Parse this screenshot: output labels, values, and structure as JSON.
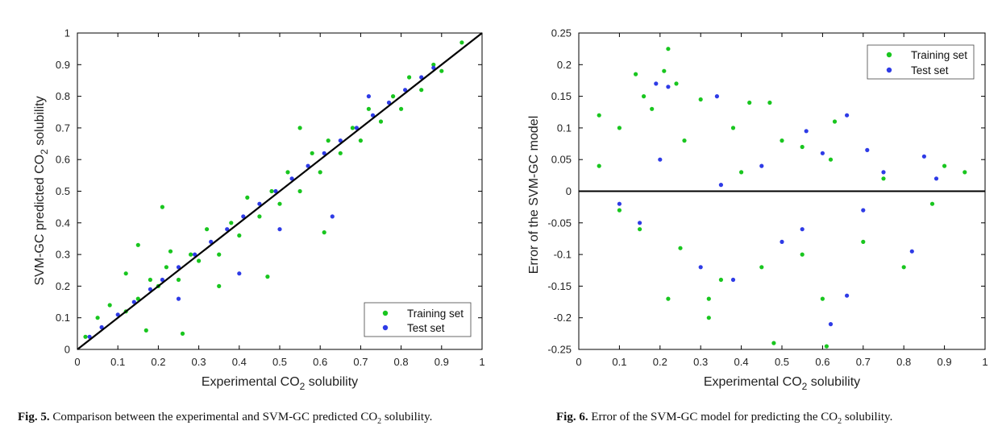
{
  "colors": {
    "training": "#19c61f",
    "test": "#2e3be6",
    "line": "#000000"
  },
  "figure5": {
    "caption_label": "Fig. 5.",
    "caption_text_1": "Comparison between the experimental and SVM-GC predicted CO",
    "caption_sub": "2",
    "caption_text_2": "solubility."
  },
  "figure6": {
    "caption_label": "Fig. 6.",
    "caption_text_1": "Error of the SVM-GC model for predicting the CO",
    "caption_sub": "2",
    "caption_text_2": " solubility."
  },
  "chart_data": [
    {
      "type": "scatter",
      "xlabel": "Experimental CO2 solubility",
      "xlabel_main": "Experimental CO",
      "xlabel_sub": "2",
      "xlabel_rest": " solubility",
      "ylabel": "SVM-GC predicted CO2 solubility",
      "ylabel_main": "SVM-GC predicted CO",
      "ylabel_sub": "2",
      "ylabel_rest": " solubility",
      "xlim": [
        0,
        1
      ],
      "ylim": [
        0,
        1
      ],
      "xticks": [
        "0",
        "0.1",
        "0.2",
        "0.3",
        "0.4",
        "0.5",
        "0.6",
        "0.7",
        "0.8",
        "0.9",
        "1"
      ],
      "yticks": [
        "0",
        "0.1",
        "0.2",
        "0.3",
        "0.4",
        "0.5",
        "0.6",
        "0.7",
        "0.8",
        "0.9",
        "1"
      ],
      "grid": false,
      "legend_position": "bottom-right",
      "reference_line": {
        "type": "y=x"
      },
      "series": [
        {
          "name": "Training set",
          "points": [
            [
              0.02,
              0.04
            ],
            [
              0.05,
              0.1
            ],
            [
              0.08,
              0.14
            ],
            [
              0.12,
              0.12
            ],
            [
              0.15,
              0.16
            ],
            [
              0.18,
              0.22
            ],
            [
              0.2,
              0.2
            ],
            [
              0.22,
              0.26
            ],
            [
              0.25,
              0.22
            ],
            [
              0.28,
              0.3
            ],
            [
              0.3,
              0.28
            ],
            [
              0.32,
              0.38
            ],
            [
              0.35,
              0.3
            ],
            [
              0.38,
              0.4
            ],
            [
              0.4,
              0.36
            ],
            [
              0.42,
              0.48
            ],
            [
              0.45,
              0.42
            ],
            [
              0.48,
              0.5
            ],
            [
              0.5,
              0.46
            ],
            [
              0.52,
              0.56
            ],
            [
              0.55,
              0.5
            ],
            [
              0.58,
              0.62
            ],
            [
              0.6,
              0.56
            ],
            [
              0.62,
              0.66
            ],
            [
              0.65,
              0.62
            ],
            [
              0.68,
              0.7
            ],
            [
              0.7,
              0.66
            ],
            [
              0.72,
              0.76
            ],
            [
              0.75,
              0.72
            ],
            [
              0.78,
              0.8
            ],
            [
              0.8,
              0.76
            ],
            [
              0.82,
              0.86
            ],
            [
              0.85,
              0.82
            ],
            [
              0.88,
              0.9
            ],
            [
              0.9,
              0.88
            ],
            [
              0.95,
              0.97
            ],
            [
              0.21,
              0.45
            ],
            [
              0.15,
              0.33
            ],
            [
              0.47,
              0.23
            ],
            [
              0.26,
              0.05
            ],
            [
              0.61,
              0.37
            ],
            [
              0.23,
              0.31
            ],
            [
              0.17,
              0.06
            ],
            [
              0.35,
              0.2
            ],
            [
              0.55,
              0.7
            ],
            [
              0.12,
              0.24
            ]
          ]
        },
        {
          "name": "Test set",
          "points": [
            [
              0.03,
              0.04
            ],
            [
              0.06,
              0.07
            ],
            [
              0.1,
              0.11
            ],
            [
              0.14,
              0.15
            ],
            [
              0.18,
              0.19
            ],
            [
              0.21,
              0.22
            ],
            [
              0.25,
              0.26
            ],
            [
              0.29,
              0.3
            ],
            [
              0.33,
              0.34
            ],
            [
              0.37,
              0.38
            ],
            [
              0.41,
              0.42
            ],
            [
              0.45,
              0.46
            ],
            [
              0.49,
              0.5
            ],
            [
              0.53,
              0.54
            ],
            [
              0.57,
              0.58
            ],
            [
              0.61,
              0.62
            ],
            [
              0.65,
              0.66
            ],
            [
              0.69,
              0.7
            ],
            [
              0.73,
              0.74
            ],
            [
              0.77,
              0.78
            ],
            [
              0.81,
              0.82
            ],
            [
              0.85,
              0.86
            ],
            [
              0.88,
              0.89
            ],
            [
              0.4,
              0.24
            ],
            [
              0.63,
              0.42
            ],
            [
              0.25,
              0.16
            ],
            [
              0.5,
              0.38
            ],
            [
              0.72,
              0.8
            ]
          ]
        }
      ]
    },
    {
      "type": "scatter",
      "xlabel": "Experimental CO2 solubility",
      "xlabel_main": "Experimental CO",
      "xlabel_sub": "2",
      "xlabel_rest": " solubility",
      "ylabel": "Error of the SVM-GC model",
      "xlim": [
        0,
        1
      ],
      "ylim": [
        -0.25,
        0.25
      ],
      "xticks": [
        "0",
        "0.1",
        "0.2",
        "0.3",
        "0.4",
        "0.5",
        "0.6",
        "0.7",
        "0.8",
        "0.9",
        "1"
      ],
      "yticks": [
        "-0.25",
        "-0.2",
        "-0.15",
        "-0.1",
        "-0.05",
        "0",
        "0.05",
        "0.1",
        "0.15",
        "0.2",
        "0.25"
      ],
      "grid": false,
      "legend_position": "top-right",
      "reference_line": {
        "type": "y=0"
      },
      "series": [
        {
          "name": "Training set",
          "points": [
            [
              0.22,
              0.225
            ],
            [
              0.14,
              0.185
            ],
            [
              0.21,
              0.19
            ],
            [
              0.16,
              0.15
            ],
            [
              0.18,
              0.13
            ],
            [
              0.1,
              0.1
            ],
            [
              0.3,
              0.145
            ],
            [
              0.42,
              0.14
            ],
            [
              0.47,
              0.14
            ],
            [
              0.63,
              0.11
            ],
            [
              0.26,
              0.08
            ],
            [
              0.38,
              0.1
            ],
            [
              0.5,
              0.08
            ],
            [
              0.55,
              0.07
            ],
            [
              0.9,
              0.04
            ],
            [
              0.95,
              0.03
            ],
            [
              0.32,
              -0.17
            ],
            [
              0.32,
              -0.2
            ],
            [
              0.22,
              -0.17
            ],
            [
              0.48,
              -0.24
            ],
            [
              0.61,
              -0.245
            ],
            [
              0.6,
              -0.17
            ],
            [
              0.35,
              -0.14
            ],
            [
              0.45,
              -0.12
            ],
            [
              0.7,
              -0.08
            ],
            [
              0.8,
              -0.12
            ],
            [
              0.15,
              -0.06
            ],
            [
              0.05,
              0.04
            ],
            [
              0.25,
              -0.09
            ],
            [
              0.55,
              -0.1
            ],
            [
              0.87,
              -0.02
            ],
            [
              0.4,
              0.03
            ],
            [
              0.62,
              0.05
            ],
            [
              0.75,
              0.02
            ],
            [
              0.1,
              -0.03
            ],
            [
              0.05,
              0.12
            ],
            [
              0.24,
              0.17
            ]
          ]
        },
        {
          "name": "Test set",
          "points": [
            [
              0.19,
              0.17
            ],
            [
              0.34,
              0.15
            ],
            [
              0.22,
              0.165
            ],
            [
              0.66,
              0.12
            ],
            [
              0.56,
              0.095
            ],
            [
              0.6,
              0.06
            ],
            [
              0.71,
              0.065
            ],
            [
              0.85,
              0.055
            ],
            [
              0.62,
              -0.21
            ],
            [
              0.66,
              -0.165
            ],
            [
              0.38,
              -0.14
            ],
            [
              0.82,
              -0.095
            ],
            [
              0.5,
              -0.08
            ],
            [
              0.3,
              -0.12
            ],
            [
              0.1,
              -0.02
            ],
            [
              0.45,
              0.04
            ],
            [
              0.75,
              0.03
            ],
            [
              0.88,
              0.02
            ],
            [
              0.2,
              0.05
            ],
            [
              0.15,
              -0.05
            ],
            [
              0.55,
              -0.06
            ],
            [
              0.7,
              -0.03
            ],
            [
              0.35,
              0.01
            ]
          ]
        }
      ]
    }
  ]
}
